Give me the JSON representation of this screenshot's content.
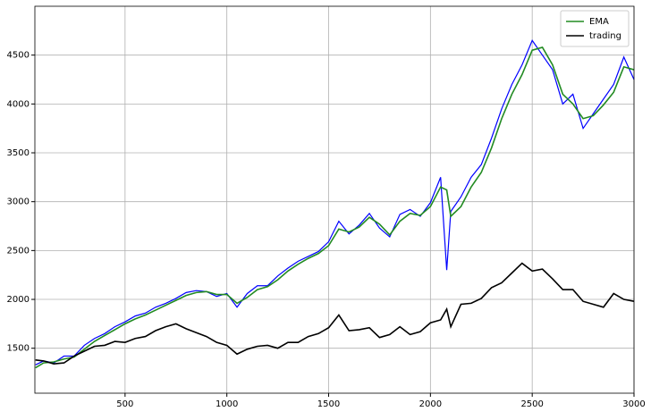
{
  "chart_data": {
    "type": "line",
    "x": [
      60,
      100,
      150,
      200,
      250,
      300,
      350,
      400,
      450,
      500,
      550,
      600,
      650,
      700,
      750,
      800,
      850,
      900,
      950,
      1000,
      1050,
      1100,
      1150,
      1200,
      1250,
      1300,
      1350,
      1400,
      1450,
      1500,
      1550,
      1600,
      1650,
      1700,
      1750,
      1800,
      1850,
      1900,
      1950,
      2000,
      2050,
      2080,
      2100,
      2150,
      2200,
      2250,
      2300,
      2350,
      2400,
      2450,
      2500,
      2550,
      2600,
      2650,
      2700,
      2750,
      2800,
      2850,
      2900,
      2950,
      3000
    ],
    "series": [
      {
        "color": "#0000ff",
        "values": [
          1330,
          1370,
          1350,
          1420,
          1420,
          1530,
          1600,
          1650,
          1720,
          1770,
          1830,
          1860,
          1920,
          1960,
          2010,
          2070,
          2090,
          2080,
          2030,
          2060,
          1920,
          2060,
          2140,
          2140,
          2240,
          2320,
          2390,
          2440,
          2490,
          2590,
          2800,
          2670,
          2760,
          2880,
          2730,
          2640,
          2870,
          2920,
          2850,
          2990,
          3250,
          2300,
          2900,
          3050,
          3250,
          3380,
          3650,
          3950,
          4200,
          4400,
          4650,
          4500,
          4350,
          4000,
          4100,
          3750,
          3900,
          4050,
          4200,
          4480,
          4250
        ]
      },
      {
        "name": "EMA",
        "color": "#228b22",
        "values": [
          1300,
          1350,
          1360,
          1390,
          1410,
          1490,
          1570,
          1630,
          1690,
          1750,
          1800,
          1840,
          1890,
          1940,
          1990,
          2040,
          2070,
          2080,
          2050,
          2050,
          1960,
          2020,
          2100,
          2130,
          2200,
          2290,
          2360,
          2420,
          2470,
          2550,
          2720,
          2690,
          2740,
          2840,
          2770,
          2660,
          2800,
          2880,
          2860,
          2950,
          3150,
          3120,
          2850,
          2950,
          3150,
          3300,
          3550,
          3850,
          4100,
          4300,
          4550,
          4580,
          4400,
          4100,
          4000,
          3850,
          3880,
          3990,
          4120,
          4380,
          4350
        ]
      },
      {
        "name": "trading",
        "color": "#000000",
        "values": [
          1380,
          1370,
          1340,
          1350,
          1420,
          1470,
          1520,
          1530,
          1570,
          1560,
          1600,
          1620,
          1680,
          1720,
          1750,
          1700,
          1660,
          1620,
          1560,
          1530,
          1440,
          1490,
          1520,
          1530,
          1500,
          1560,
          1560,
          1620,
          1650,
          1710,
          1840,
          1680,
          1690,
          1710,
          1610,
          1640,
          1720,
          1640,
          1670,
          1760,
          1790,
          1900,
          1720,
          1950,
          1960,
          2010,
          2120,
          2170,
          2270,
          2370,
          2290,
          2310,
          2210,
          2100,
          2100,
          1980,
          1950,
          1920,
          2060,
          2000,
          1980
        ]
      }
    ],
    "xlim": [
      57,
      3000
    ],
    "xticks": [
      500,
      1000,
      1500,
      2000,
      2500,
      3000
    ],
    "ylim": [
      1040,
      5000
    ],
    "yticks": [
      1500,
      2000,
      2500,
      3000,
      3500,
      4000,
      4500
    ],
    "grid": true,
    "legend": "upper right"
  }
}
